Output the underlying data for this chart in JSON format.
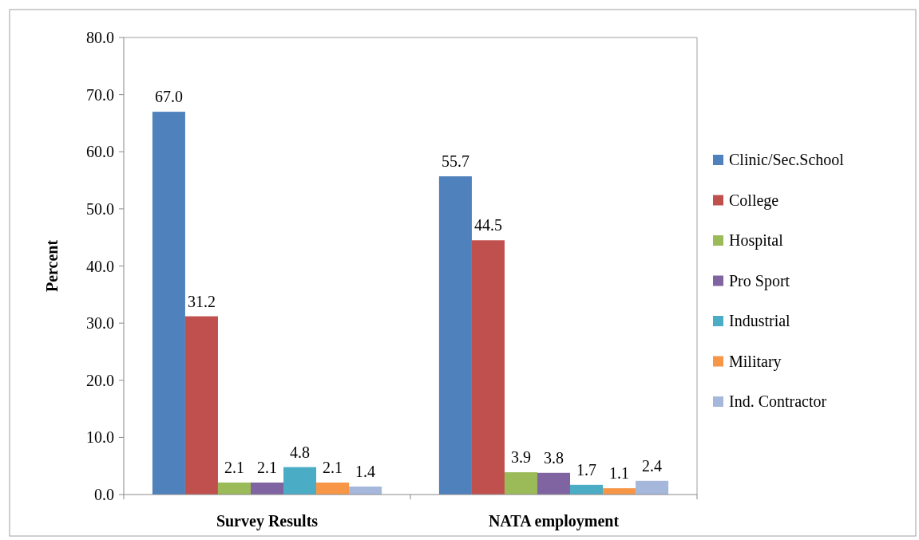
{
  "chart_data": {
    "type": "bar",
    "ylabel": "Percent",
    "categories": [
      "Survey Results",
      "NATA employment"
    ],
    "series": [
      {
        "name": "Clinic/Sec.School",
        "color": "#4f81bd",
        "values": [
          67.0,
          55.7
        ],
        "value_labels": [
          "67.0",
          "55.7"
        ]
      },
      {
        "name": "College",
        "color": "#c0504d",
        "values": [
          31.2,
          44.5
        ],
        "value_labels": [
          "31.2",
          "44.5"
        ]
      },
      {
        "name": "Hospital",
        "color": "#9bbb59",
        "values": [
          2.1,
          3.9
        ],
        "value_labels": [
          "2.1",
          "3.9"
        ]
      },
      {
        "name": "Pro Sport",
        "color": "#8064a2",
        "values": [
          2.1,
          3.8
        ],
        "value_labels": [
          "2.1",
          "3.8"
        ]
      },
      {
        "name": "Industrial",
        "color": "#4bacc6",
        "values": [
          4.8,
          1.7
        ],
        "value_labels": [
          "4.8",
          "1.7"
        ]
      },
      {
        "name": "Military",
        "color": "#f79646",
        "values": [
          2.1,
          1.1
        ],
        "value_labels": [
          "2.1",
          "1.1"
        ]
      },
      {
        "name": "Ind. Contractor",
        "color": "#a5b8dc",
        "values": [
          1.4,
          2.4
        ],
        "value_labels": [
          "1.4",
          "2.4"
        ]
      }
    ],
    "ylim": [
      0,
      80
    ],
    "yticks": [
      {
        "value": 0,
        "label": "0.0"
      },
      {
        "value": 10,
        "label": "10.0"
      },
      {
        "value": 20,
        "label": "20.0"
      },
      {
        "value": 30,
        "label": "30.0"
      },
      {
        "value": 40,
        "label": "40.0"
      },
      {
        "value": 50,
        "label": "50.0"
      },
      {
        "value": 60,
        "label": "60.0"
      },
      {
        "value": 70,
        "label": "70.0"
      },
      {
        "value": 80,
        "label": "80.0"
      }
    ],
    "legend": "right",
    "grid": false
  }
}
